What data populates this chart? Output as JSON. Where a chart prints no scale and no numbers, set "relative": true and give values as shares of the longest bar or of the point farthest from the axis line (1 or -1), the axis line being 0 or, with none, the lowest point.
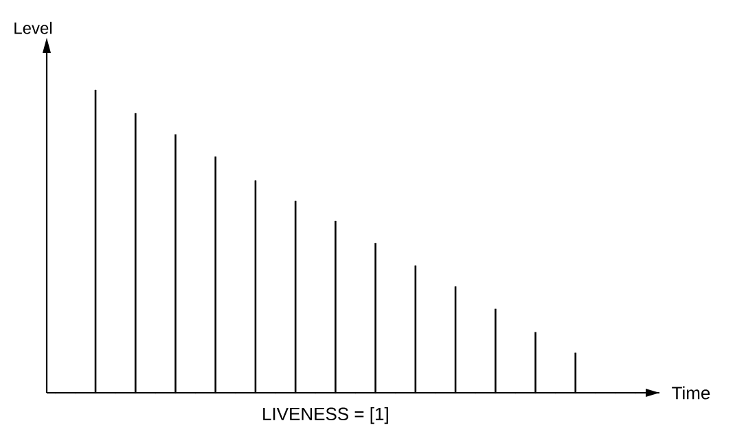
{
  "chart_data": {
    "type": "bar",
    "relative": true,
    "ylabel": "Level",
    "xlabel": "Time",
    "annotations": [
      "LIVENESS = [1]"
    ],
    "categories": [
      null,
      null,
      null,
      null,
      null,
      null,
      null,
      null,
      null,
      null,
      null,
      null,
      null
    ],
    "values": [
      1,
      0.923,
      0.853,
      0.78,
      0.701,
      0.633,
      0.567,
      0.494,
      0.42,
      0.351,
      0.277,
      0.2,
      0.132
    ],
    "color": "#000000"
  }
}
